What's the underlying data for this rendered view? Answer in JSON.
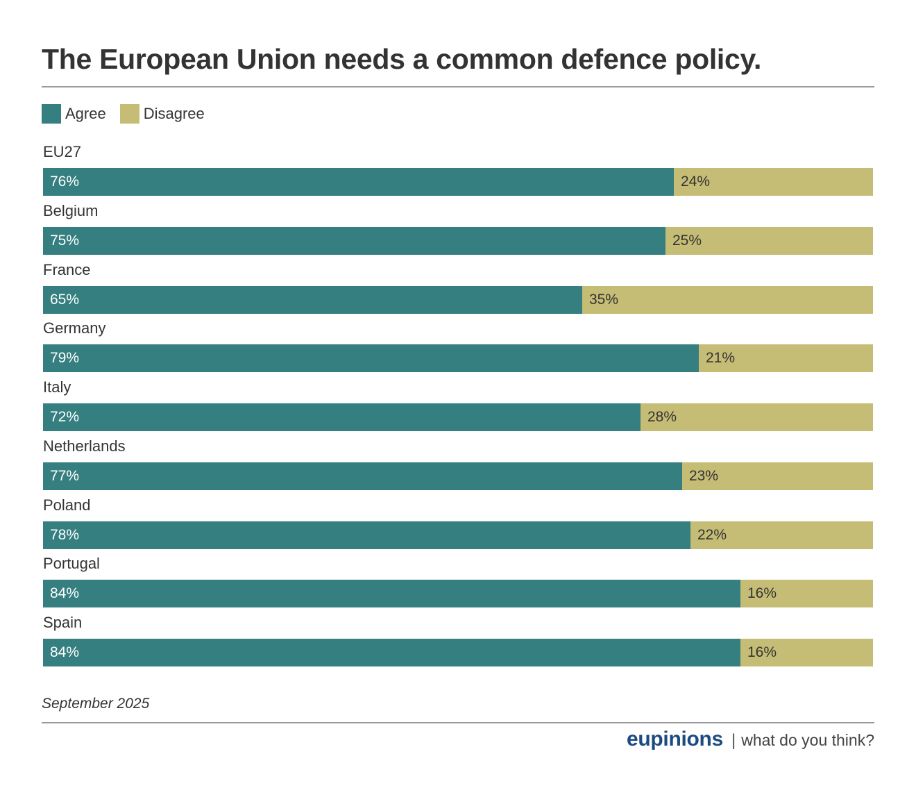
{
  "title": "The European Union needs a common defence policy.",
  "legend": [
    {
      "label": "Agree",
      "color": "#357f80"
    },
    {
      "label": "Disagree",
      "color": "#c5bc75"
    }
  ],
  "footer": {
    "date": "September 2025",
    "brand": "eupinions",
    "separator": "|",
    "tagline": "what do you think?",
    "brand_color": "#1c4b82"
  },
  "chart_data": {
    "type": "bar",
    "orientation": "horizontal",
    "stacked": true,
    "normalized": true,
    "title": "The European Union needs a common defence policy.",
    "xlabel": "",
    "ylabel": "",
    "xlim": [
      0,
      100
    ],
    "grid": false,
    "legend_position": "top-left",
    "categories": [
      "EU27",
      "Belgium",
      "France",
      "Germany",
      "Italy",
      "Netherlands",
      "Poland",
      "Portugal",
      "Spain"
    ],
    "series": [
      {
        "name": "Agree",
        "color": "#357f80",
        "values": [
          76,
          75,
          65,
          79,
          72,
          77,
          78,
          84,
          84
        ]
      },
      {
        "name": "Disagree",
        "color": "#c5bc75",
        "values": [
          24,
          25,
          35,
          21,
          28,
          23,
          22,
          16,
          16
        ]
      }
    ],
    "value_suffix": "%",
    "annotation": "September 2025"
  }
}
